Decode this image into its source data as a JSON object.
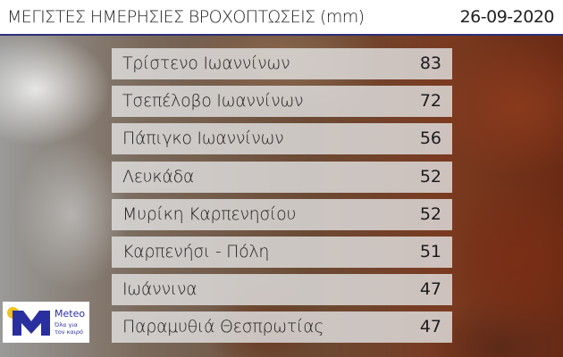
{
  "header": {
    "title": "ΜΕΓΙΣΤΕΣ ΗΜΕΡΗΣΙΕΣ ΒΡΟΧΟΠΤΩΣΕΙΣ (mm)",
    "date": "26-09-2020"
  },
  "rows": [
    {
      "name": "Τρίστενο Ιωαννίνων",
      "value": "83"
    },
    {
      "name": "Τσεπέλοβο Ιωαννίνων",
      "value": "72"
    },
    {
      "name": "Πάπιγκο Ιωαννίνων",
      "value": "56"
    },
    {
      "name": "Λευκάδα",
      "value": "52"
    },
    {
      "name": "Μυρίκη Καρπενησίου",
      "value": "52"
    },
    {
      "name": "Καρπενήσι - Πόλη",
      "value": "51"
    },
    {
      "name": "Ιωάννινα",
      "value": "47"
    },
    {
      "name": "Παραμυθιά Θεσπρωτίας",
      "value": "47"
    }
  ],
  "logo": {
    "brand": "Meteo",
    "tagline": "Όλα για τον καιρό"
  },
  "colors": {
    "accent": "#2a2f7a",
    "logo_blue": "#2a2fa0",
    "logo_sun": "#f2c21b"
  }
}
